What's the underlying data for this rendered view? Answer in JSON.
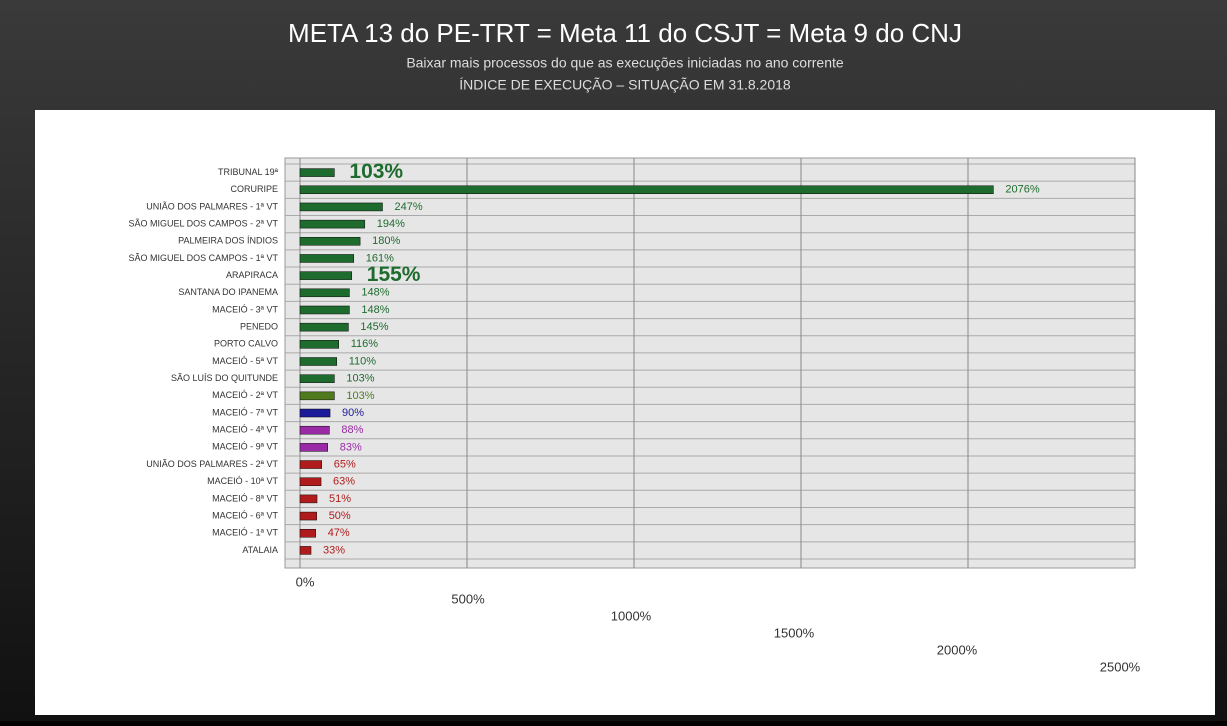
{
  "chart_data": {
    "type": "bar",
    "orientation": "horizontal",
    "title": "META 13 do PE-TRT = Meta 11 do CSJT = Meta 9 do CNJ",
    "subtitle": "Baixar mais processos do que as execuções iniciadas no ano corrente",
    "subtitle2": "ÍNDICE DE EXECUÇÃO – SITUAÇÃO EM 31.8.2018",
    "categories": [
      "TRIBUNAL 19ª",
      "CORURIPE",
      "UNIÃO DOS PALMARES - 1ª VT",
      "SÃO MIGUEL DOS CAMPOS - 2ª VT",
      "PALMEIRA DOS ÍNDIOS",
      "SÃO MIGUEL DOS CAMPOS - 1ª VT",
      "ARAPIRACA",
      "SANTANA DO IPANEMA",
      "MACEIÓ - 3ª VT",
      "PENEDO",
      "PORTO CALVO",
      "MACEIÓ - 5ª VT",
      "SÃO LUÍS DO QUITUNDE",
      "MACEIÓ - 2ª VT",
      "MACEIÓ - 7ª VT",
      "MACEIÓ - 4ª VT",
      "MACEIÓ - 9ª VT",
      "UNIÃO DOS PALMARES - 2ª VT",
      "MACEIÓ - 10ª VT",
      "MACEIÓ - 8ª VT",
      "MACEIÓ - 6ª VT",
      "MACEIÓ - 1ª VT",
      "ATALAIA"
    ],
    "values": [
      103,
      2076,
      247,
      194,
      180,
      161,
      155,
      148,
      148,
      145,
      116,
      110,
      103,
      103,
      90,
      88,
      83,
      65,
      63,
      51,
      50,
      47,
      33
    ],
    "value_labels": [
      "103%",
      "2076%",
      "247%",
      "194%",
      "180%",
      "161%",
      "155%",
      "148%",
      "148%",
      "145%",
      "116%",
      "110%",
      "103%",
      "103%",
      "90%",
      "88%",
      "83%",
      "65%",
      "63%",
      "51%",
      "50%",
      "47%",
      "33%"
    ],
    "colors": [
      "#1e6b2e",
      "#1e6b2e",
      "#1e6b2e",
      "#1e6b2e",
      "#1e6b2e",
      "#1e6b2e",
      "#1e6b2e",
      "#1e6b2e",
      "#1e6b2e",
      "#1e6b2e",
      "#1e6b2e",
      "#1e6b2e",
      "#1e6b2e",
      "#4f7a1e",
      "#1a1a9a",
      "#9a2aa6",
      "#9a2aa6",
      "#b01c1c",
      "#b01c1c",
      "#b01c1c",
      "#b01c1c",
      "#b01c1c",
      "#b01c1c"
    ],
    "xlim": [
      0,
      2500
    ],
    "xticks": [
      {
        "value": 0,
        "label": "0%"
      },
      {
        "value": 500,
        "label": "500%"
      },
      {
        "value": 1000,
        "label": "1000%"
      },
      {
        "value": 1500,
        "label": "1500%"
      },
      {
        "value": 2000,
        "label": "2000%"
      },
      {
        "value": 2500,
        "label": "2500%"
      }
    ],
    "grid": true
  }
}
